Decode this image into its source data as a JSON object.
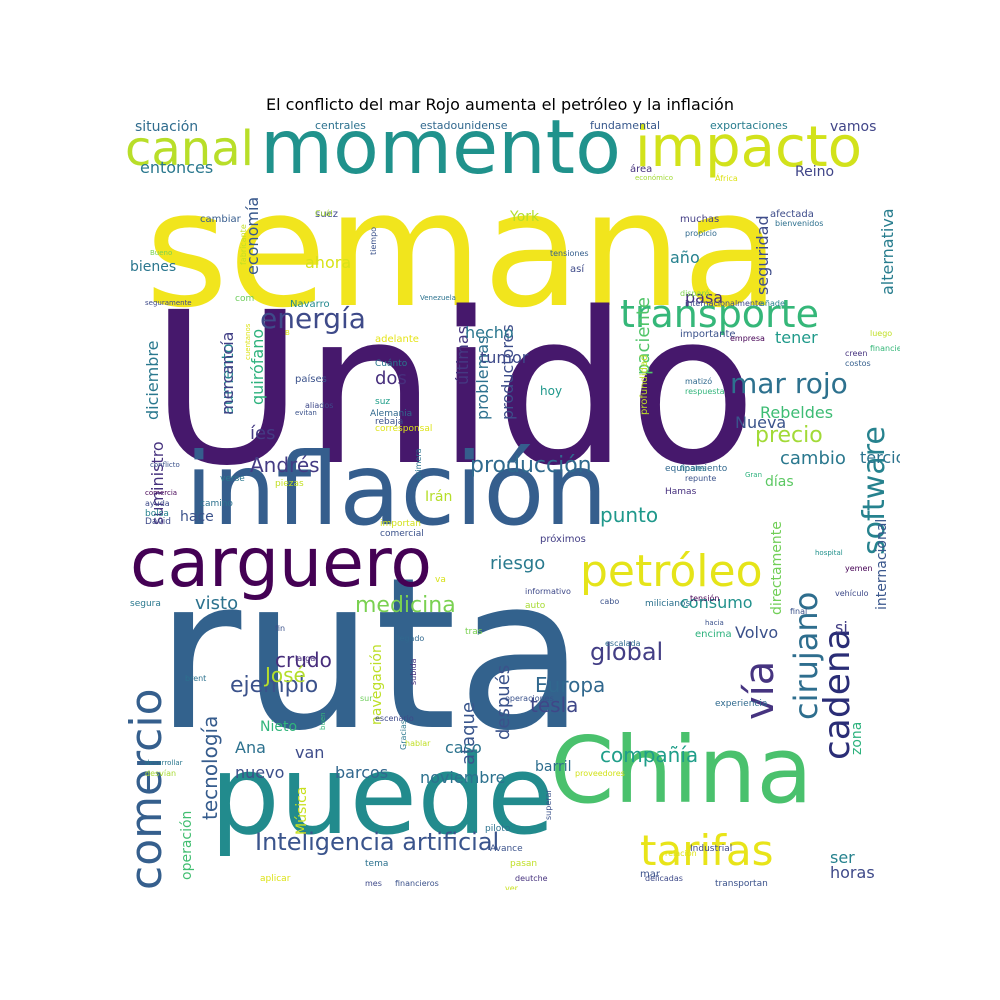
{
  "title": "El conflicto del mar Rojo aumenta el petróleo y la inflación",
  "words": [
    {
      "text": "semana",
      "color": "#f1e51d"
    },
    {
      "text": "Unido",
      "color": "#46186c"
    },
    {
      "text": "ruta",
      "color": "#33628d"
    },
    {
      "text": "inflación",
      "color": "#355e8d"
    },
    {
      "text": "puede",
      "color": "#228b8d"
    },
    {
      "text": "momento",
      "color": "#20928c"
    },
    {
      "text": "carguero",
      "color": "#440154"
    },
    {
      "text": "China",
      "color": "#4ac16d"
    },
    {
      "text": "impacto",
      "color": "#d2e21b"
    },
    {
      "text": "petróleo",
      "color": "#e5e419"
    },
    {
      "text": "transporte",
      "color": "#35b779"
    },
    {
      "text": "canal",
      "color": "#b8de29"
    },
    {
      "text": "comercio",
      "color": "#355f8d"
    },
    {
      "text": "software",
      "color": "#26828e"
    },
    {
      "text": "cadena",
      "color": "#2a2d76"
    },
    {
      "text": "tarifas",
      "color": "#e8e419"
    },
    {
      "text": "vía",
      "color": "#463480"
    },
    {
      "text": "cirujano",
      "color": "#2e6e8e"
    },
    {
      "text": "energía",
      "color": "#3e4a89"
    },
    {
      "text": "mar rojo",
      "color": "#2d718e"
    },
    {
      "text": "Inteligencia artificial",
      "color": "#3a548c"
    },
    {
      "text": "producción",
      "color": "#306a8e"
    },
    {
      "text": "medicina",
      "color": "#7ad151"
    },
    {
      "text": "global",
      "color": "#433e85"
    },
    {
      "text": "Andrés",
      "color": "#443b84"
    },
    {
      "text": "tecnología",
      "color": "#365c8d"
    },
    {
      "text": "compañía",
      "color": "#1f9e89"
    },
    {
      "text": "ejemplo",
      "color": "#3b528b"
    },
    {
      "text": "tesla",
      "color": "#3f4788"
    },
    {
      "text": "Europa",
      "color": "#31688e"
    },
    {
      "text": "crudo",
      "color": "#472d7b"
    },
    {
      "text": "precio",
      "color": "#a2da37"
    },
    {
      "text": "cambio",
      "color": "#2a788e"
    },
    {
      "text": "José",
      "color": "#b5de2b"
    },
    {
      "text": "punto",
      "color": "#1f988b"
    },
    {
      "text": "ataque",
      "color": "#39558c"
    },
    {
      "text": "después",
      "color": "#3b528b"
    },
    {
      "text": "consumo",
      "color": "#21918c"
    },
    {
      "text": "riesgo",
      "color": "#297a8e"
    },
    {
      "text": "visto",
      "color": "#2c728e"
    },
    {
      "text": "nuevo",
      "color": "#3c4f8a"
    },
    {
      "text": "barcos",
      "color": "#31678e"
    },
    {
      "text": "noviembre",
      "color": "#2c718e"
    },
    {
      "text": "economía",
      "color": "#38588c"
    },
    {
      "text": "aumento",
      "color": "#25858e"
    },
    {
      "text": "mercancía",
      "color": "#424086"
    },
    {
      "text": "quirófano",
      "color": "#2db27d"
    },
    {
      "text": "problemas",
      "color": "#2d708e"
    },
    {
      "text": "productores",
      "color": "#3d4d8a"
    },
    {
      "text": "diciembre",
      "color": "#2a788e"
    },
    {
      "text": "suministro",
      "color": "#46327e"
    },
    {
      "text": "seguridad",
      "color": "#3e4c8a"
    },
    {
      "text": "paciente",
      "color": "#52c569"
    },
    {
      "text": "alternativa",
      "color": "#287d8e"
    },
    {
      "text": "directamente",
      "color": "#71cf57"
    },
    {
      "text": "internacional",
      "color": "#39568c"
    },
    {
      "text": "operación",
      "color": "#42be71"
    },
    {
      "text": "navegación",
      "color": "#bddf26"
    },
    {
      "text": "últimas",
      "color": "#453882"
    },
    {
      "text": "tumor",
      "color": "#3e4989"
    },
    {
      "text": "hecho",
      "color": "#2a768e"
    },
    {
      "text": "ahora",
      "color": "#d8e219"
    },
    {
      "text": "año",
      "color": "#26818e"
    },
    {
      "text": "pasa",
      "color": "#46307e"
    },
    {
      "text": "tener",
      "color": "#1f9a8a"
    },
    {
      "text": "días",
      "color": "#5cc863"
    },
    {
      "text": "Nueva",
      "color": "#3a538b"
    },
    {
      "text": "Volvo",
      "color": "#3b518b"
    },
    {
      "text": "Rebeldes",
      "color": "#3dbc74"
    },
    {
      "text": "tercio",
      "color": "#2c738e"
    },
    {
      "text": "Reino",
      "color": "#404588"
    },
    {
      "text": "York",
      "color": "#b5de2b"
    },
    {
      "text": "bienes",
      "color": "#2a768e"
    },
    {
      "text": "situación",
      "color": "#2f6c8e"
    },
    {
      "text": "entonces",
      "color": "#2a788e"
    },
    {
      "text": "vamos",
      "color": "#404588"
    },
    {
      "text": "dos",
      "color": "#472f7d"
    },
    {
      "text": "íes",
      "color": "#443a83"
    },
    {
      "text": "hace",
      "color": "#3b528b"
    },
    {
      "text": "Irán",
      "color": "#b5de2b"
    },
    {
      "text": "Ana",
      "color": "#2c718e"
    },
    {
      "text": "van",
      "color": "#3e4c8a"
    },
    {
      "text": "Nieto",
      "color": "#31b57b"
    },
    {
      "text": "caso",
      "color": "#2c738e"
    },
    {
      "text": "barril",
      "color": "#2e6e8e"
    },
    {
      "text": "si",
      "color": "#433e85"
    },
    {
      "text": "ser",
      "color": "#26828e"
    },
    {
      "text": "horas",
      "color": "#3e4989"
    },
    {
      "text": "zona",
      "color": "#2db27d"
    },
    {
      "text": "Música",
      "color": "#c8e020"
    },
    {
      "text": "centrales",
      "color": "#2c718e"
    },
    {
      "text": "estadounidense",
      "color": "#31688e"
    },
    {
      "text": "fundamental",
      "color": "#38588c"
    },
    {
      "text": "exportaciones",
      "color": "#287d8e"
    },
    {
      "text": "cambiar",
      "color": "#365c8d"
    },
    {
      "text": "suez",
      "color": "#3e4a89"
    },
    {
      "text": "muchas",
      "color": "#433e85"
    },
    {
      "text": "afectada",
      "color": "#3e4c8a"
    },
    {
      "text": "bienvenidos",
      "color": "#2d708e"
    },
    {
      "text": "propicio",
      "color": "#306a8e"
    },
    {
      "text": "área",
      "color": "#46327e"
    },
    {
      "text": "económico",
      "color": "#a2da37"
    },
    {
      "text": "África",
      "color": "#dde318"
    },
    {
      "text": "Cuál",
      "color": "#a8db34"
    },
    {
      "text": "fabricante",
      "color": "#c2df23"
    },
    {
      "text": "tiempo",
      "color": "#3b528b"
    },
    {
      "text": "Bueno",
      "color": "#7ad151"
    },
    {
      "text": "tensiones",
      "color": "#355f8d"
    },
    {
      "text": "así",
      "color": "#3e4a89"
    },
    {
      "text": "disparó",
      "color": "#7fd34e"
    },
    {
      "text": "internacionalmente",
      "color": "#3e4989"
    },
    {
      "text": "añade",
      "color": "#26828e"
    },
    {
      "text": "seguramente",
      "color": "#3e4a89"
    },
    {
      "text": "com",
      "color": "#6ccd5a"
    },
    {
      "text": "Navarro",
      "color": "#23898e"
    },
    {
      "text": "Venezuela",
      "color": "#2c728e"
    },
    {
      "text": "B",
      "color": "#dde318"
    },
    {
      "text": "cuentanos",
      "color": "#dde318"
    },
    {
      "text": "adelante",
      "color": "#e5e419"
    },
    {
      "text": "importante",
      "color": "#3b528b"
    },
    {
      "text": "empresa",
      "color": "#440154"
    },
    {
      "text": "luego",
      "color": "#c0df25"
    },
    {
      "text": "financiera",
      "color": "#35b779"
    },
    {
      "text": "creen",
      "color": "#46327e"
    },
    {
      "text": "costos",
      "color": "#355f8d"
    },
    {
      "text": "Cuánto",
      "color": "#2a768e"
    },
    {
      "text": "países",
      "color": "#3b528b"
    },
    {
      "text": "hoy",
      "color": "#1f988b"
    },
    {
      "text": "matizó",
      "color": "#306a8e"
    },
    {
      "text": "respuesta",
      "color": "#31b57b"
    },
    {
      "text": "aliados",
      "color": "#3e4989"
    },
    {
      "text": "suz",
      "color": "#1f9e89"
    },
    {
      "text": "evitan",
      "color": "#3b528b"
    },
    {
      "text": "Alemania",
      "color": "#31688e"
    },
    {
      "text": "rebaja",
      "color": "#3b528b"
    },
    {
      "text": "corresponsal",
      "color": "#dde318"
    },
    {
      "text": "profundidad",
      "color": "#bddf26"
    },
    {
      "text": "conflicto",
      "color": "#3b528b"
    },
    {
      "text": "verse",
      "color": "#2a788e"
    },
    {
      "text": "piezas",
      "color": "#c2df23"
    },
    {
      "text": "primera",
      "color": "#2c728e"
    },
    {
      "text": "equipamiento",
      "color": "#31688e"
    },
    {
      "text": "finales",
      "color": "#2a788e"
    },
    {
      "text": "repunte",
      "color": "#3b528b"
    },
    {
      "text": "Gran",
      "color": "#2db27d"
    },
    {
      "text": "Hamas",
      "color": "#46307e"
    },
    {
      "text": "comercia",
      "color": "#440154"
    },
    {
      "text": "ayuda",
      "color": "#3e4a89"
    },
    {
      "text": "camino",
      "color": "#2c718e"
    },
    {
      "text": "bolsa",
      "color": "#26828e"
    },
    {
      "text": "David",
      "color": "#3e4a89"
    },
    {
      "text": "importan",
      "color": "#d2e21b"
    },
    {
      "text": "comercial",
      "color": "#3b528b"
    },
    {
      "text": "próximos",
      "color": "#433e85"
    },
    {
      "text": "hospital",
      "color": "#21918c"
    },
    {
      "text": "yemen",
      "color": "#440154"
    },
    {
      "text": "va",
      "color": "#d8e219"
    },
    {
      "text": "informativo",
      "color": "#3e4989"
    },
    {
      "text": "segura",
      "color": "#2a788e"
    },
    {
      "text": "auto",
      "color": "#a8db34"
    },
    {
      "text": "vehículo",
      "color": "#3e4a89"
    },
    {
      "text": "cabo",
      "color": "#3b528b"
    },
    {
      "text": "milicianos",
      "color": "#2c718e"
    },
    {
      "text": "tensión",
      "color": "#440154"
    },
    {
      "text": "final",
      "color": "#3b528b"
    },
    {
      "text": "tras",
      "color": "#7ad151"
    },
    {
      "text": "hacia",
      "color": "#3b528b"
    },
    {
      "text": "encima",
      "color": "#2db27d"
    },
    {
      "text": "escalada",
      "color": "#306a8e"
    },
    {
      "text": "larga",
      "color": "#472d7b"
    },
    {
      "text": "fin",
      "color": "#3b528b"
    },
    {
      "text": "llegado",
      "color": "#31688e"
    },
    {
      "text": "subida",
      "color": "#46327e"
    },
    {
      "text": "brent",
      "color": "#2c718e"
    },
    {
      "text": "sur",
      "color": "#6ccd5a"
    },
    {
      "text": "operaciones",
      "color": "#3b528b"
    },
    {
      "text": "experiencia",
      "color": "#306a8e"
    },
    {
      "text": "escenario",
      "color": "#3e4989"
    },
    {
      "text": "hablar",
      "color": "#c0df25"
    },
    {
      "text": "buen",
      "color": "#35b779"
    },
    {
      "text": "Gracias",
      "color": "#2a788e"
    },
    {
      "text": "proveedores",
      "color": "#d2e21b"
    },
    {
      "text": "piloto",
      "color": "#2c718e"
    },
    {
      "text": "superar",
      "color": "#3b528b"
    },
    {
      "text": "desarrollar",
      "color": "#2a768e"
    },
    {
      "text": "desvían",
      "color": "#a8db34"
    },
    {
      "text": "Avance",
      "color": "#3b528b"
    },
    {
      "text": "relación",
      "color": "#dde318"
    },
    {
      "text": "deutche",
      "color": "#46327e"
    },
    {
      "text": "aplicar",
      "color": "#dde318"
    },
    {
      "text": "mes",
      "color": "#3e4989"
    },
    {
      "text": "transportan",
      "color": "#3b528b"
    },
    {
      "text": "Industrial",
      "color": "#3e4a89"
    },
    {
      "text": "informaciones",
      "color": "#2a788e"
    },
    {
      "text": "ver",
      "color": "#c8e020"
    },
    {
      "text": "financieros",
      "color": "#3b528b"
    },
    {
      "text": "delicadas",
      "color": "#3e4a89"
    },
    {
      "text": "pasan",
      "color": "#c0df25"
    },
    {
      "text": "tema",
      "color": "#2c718e"
    },
    {
      "text": "mar",
      "color": "#3b528b"
    }
  ]
}
